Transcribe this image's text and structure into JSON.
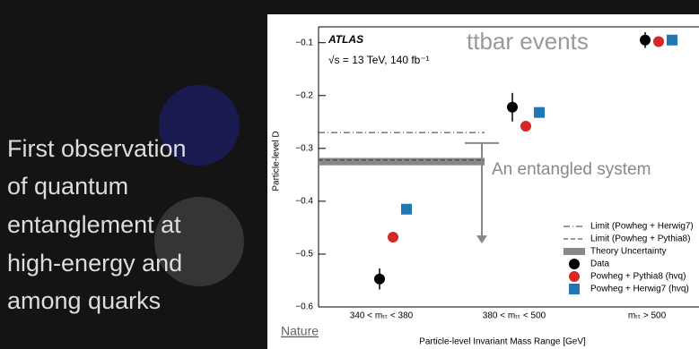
{
  "slide": {
    "headline": [
      "First observation",
      "of quantum",
      "entanglement at",
      "high-energy and",
      "among quarks"
    ],
    "source": "Nature"
  },
  "chart_data": {
    "type": "scatter",
    "title": "ttbar events",
    "experiment": "ATLAS",
    "subtitle": "√s = 13 TeV, 140 fb⁻¹",
    "y_label": "Particle-level D",
    "x_label": "Particle-level Invariant Mass Range [GeV]",
    "categories": [
      "340 < mₜₜ < 380",
      "380 < mₜₜ < 500",
      "mₜₜ > 500"
    ],
    "ylim": [
      -0.6,
      -0.07
    ],
    "yticks": [
      {
        "value": -0.6,
        "label": "−0.6"
      },
      {
        "value": -0.5,
        "label": "−0.5"
      },
      {
        "value": -0.4,
        "label": "−0.4"
      },
      {
        "value": -0.3,
        "label": "−0.3"
      },
      {
        "value": -0.2,
        "label": "−0.2"
      },
      {
        "value": -0.1,
        "label": "−0.1"
      }
    ],
    "series": [
      {
        "name": "Data",
        "color": "#000000",
        "marker": "circle",
        "values": [
          -0.547,
          -0.222,
          -0.095
        ],
        "errors": [
          0.02,
          0.027,
          0.015
        ]
      },
      {
        "name": "Powheg + Pythia8 (hvq)",
        "color": "#d62728",
        "marker": "circle",
        "values": [
          -0.468,
          -0.258,
          -0.098
        ]
      },
      {
        "name": "Powheg + Herwig7 (hvq)",
        "color": "#1f77b4",
        "marker": "square",
        "values": [
          -0.415,
          -0.232,
          -0.095
        ]
      }
    ],
    "limits": [
      {
        "name": "Limit (Powheg + Herwig7)",
        "value": -0.27,
        "style": "dashdot"
      },
      {
        "name": "Limit (Powheg + Pythia8)",
        "value": -0.322,
        "style": "dashed"
      }
    ],
    "band": {
      "name": "Theory Uncertainty",
      "values": [
        -0.332,
        -0.318
      ]
    },
    "annotation": {
      "text": "An entangled system",
      "from": -0.29,
      "to": -0.48
    }
  }
}
